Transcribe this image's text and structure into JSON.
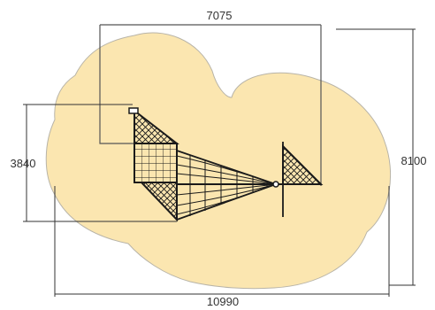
{
  "colors": {
    "safety_zone_fill": "#fbe6b0",
    "safety_zone_stroke": "#b8b4a8",
    "structure_stroke": "#1a1a1a",
    "dimension_line": "#333333"
  },
  "dimensions": {
    "top_width": "7075",
    "left_height": "3840",
    "right_height": "8100",
    "bottom_width": "10990"
  }
}
